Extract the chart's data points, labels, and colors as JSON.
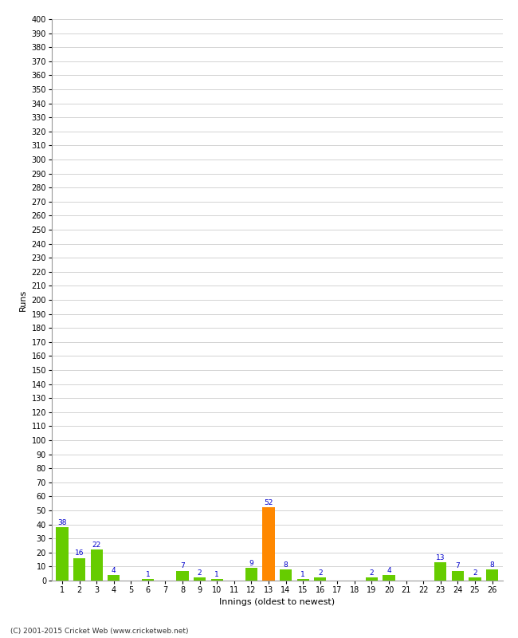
{
  "xlabel": "Innings (oldest to newest)",
  "ylabel": "Runs",
  "categories": [
    1,
    2,
    3,
    4,
    5,
    6,
    7,
    8,
    9,
    10,
    11,
    12,
    13,
    14,
    15,
    16,
    17,
    18,
    19,
    20,
    21,
    22,
    23,
    24,
    25,
    26
  ],
  "values": [
    38,
    16,
    22,
    4,
    0,
    1,
    0,
    7,
    2,
    1,
    0,
    9,
    52,
    8,
    1,
    2,
    0,
    0,
    2,
    4,
    0,
    0,
    13,
    7,
    2,
    8
  ],
  "bar_colors": [
    "#66cc00",
    "#66cc00",
    "#66cc00",
    "#66cc00",
    "#66cc00",
    "#66cc00",
    "#66cc00",
    "#66cc00",
    "#66cc00",
    "#66cc00",
    "#66cc00",
    "#66cc00",
    "#ff8800",
    "#66cc00",
    "#66cc00",
    "#66cc00",
    "#66cc00",
    "#66cc00",
    "#66cc00",
    "#66cc00",
    "#66cc00",
    "#66cc00",
    "#66cc00",
    "#66cc00",
    "#66cc00",
    "#66cc00"
  ],
  "ylim": [
    0,
    400
  ],
  "ytick_step": 10,
  "label_color": "#0000cc",
  "label_fontsize": 6.5,
  "axis_label_fontsize": 8,
  "tick_fontsize": 7,
  "background_color": "#ffffff",
  "grid_color": "#cccccc",
  "footer": "(C) 2001-2015 Cricket Web (www.cricketweb.net)"
}
